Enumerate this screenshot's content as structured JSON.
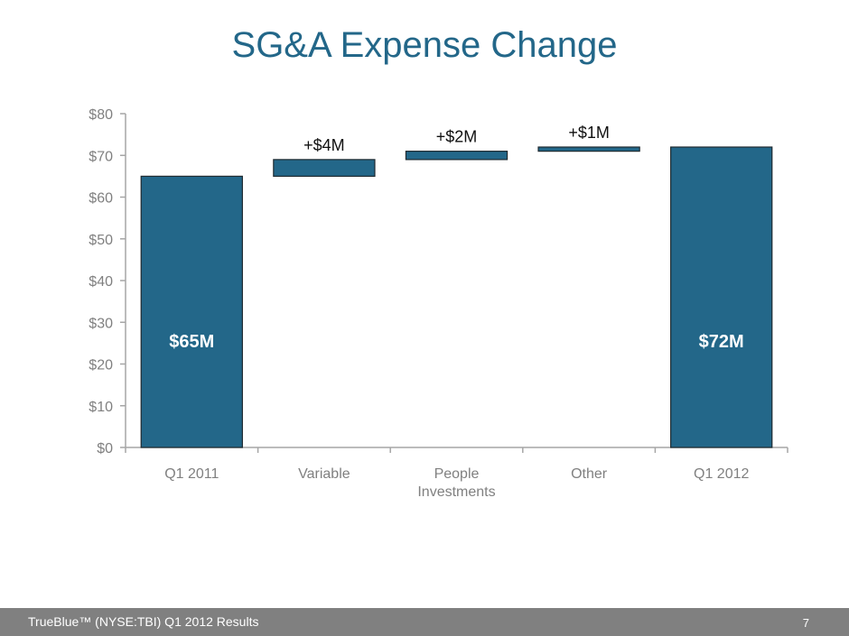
{
  "slide": {
    "title": "SG&A Expense Change",
    "footer": "TrueBlue™ (NYSE:TBI) Q1 2012 Results",
    "page_number": "7"
  },
  "colors": {
    "title": "#236789",
    "bar": "#236789",
    "bar_border": "#1f2a30",
    "axis": "#a6a6a6",
    "tick_text": "#808080",
    "footer_bg": "#808080"
  },
  "chart_data": {
    "type": "bar",
    "subtype": "waterfall",
    "title": "SG&A Expense Change",
    "xlabel": "",
    "ylabel": "",
    "ylim": [
      0,
      80
    ],
    "y_ticks": [
      0,
      10,
      20,
      30,
      40,
      50,
      60,
      70,
      80
    ],
    "y_tick_labels": [
      "$0",
      "$10",
      "$20",
      "$30",
      "$40",
      "$50",
      "$60",
      "$70",
      "$80"
    ],
    "grid": false,
    "legend": "none",
    "categories": [
      "Q1 2011",
      "Variable",
      "People Investments",
      "Other",
      "Q1 2012"
    ],
    "category_lines": [
      [
        "Q1 2011"
      ],
      [
        "Variable"
      ],
      [
        "People",
        "Investments"
      ],
      [
        "Other"
      ],
      [
        "Q1 2012"
      ]
    ],
    "bars": [
      {
        "category": "Q1 2011",
        "base": 0,
        "value": 65,
        "kind": "total",
        "label": "$65M"
      },
      {
        "category": "Variable",
        "base": 65,
        "value": 4,
        "kind": "delta",
        "label": "+$4M"
      },
      {
        "category": "People Investments",
        "base": 69,
        "value": 2,
        "kind": "delta",
        "label": "+$2M"
      },
      {
        "category": "Other",
        "base": 71,
        "value": 1,
        "kind": "delta",
        "label": "+$1M"
      },
      {
        "category": "Q1 2012",
        "base": 0,
        "value": 72,
        "kind": "total",
        "label": "$72M"
      }
    ]
  }
}
